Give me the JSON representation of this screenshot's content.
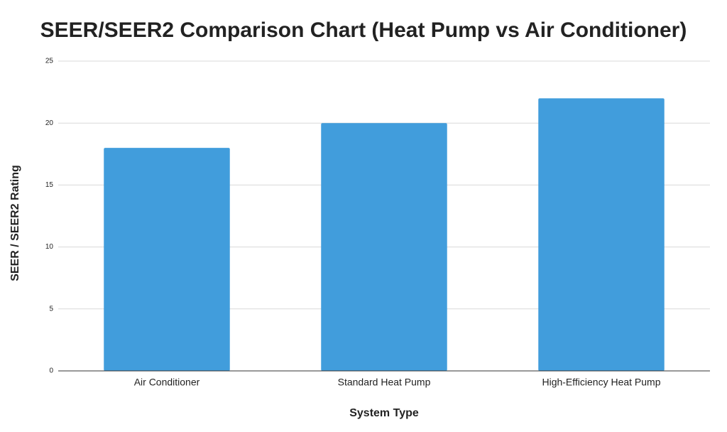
{
  "chart_data": {
    "type": "bar",
    "title": "SEER/SEER2 Comparison Chart (Heat Pump vs Air Conditioner)",
    "x_label": "System Type",
    "y_label": "SEER / SEER2 Rating",
    "categories": [
      "Air Conditioner",
      "Standard Heat Pump",
      "High-Efficiency Heat Pump"
    ],
    "values": [
      18,
      20,
      22
    ],
    "color": "#419ddc",
    "ylim": [
      0,
      25
    ],
    "yticks": [
      0,
      5,
      10,
      15,
      20,
      25
    ],
    "grid": true
  }
}
